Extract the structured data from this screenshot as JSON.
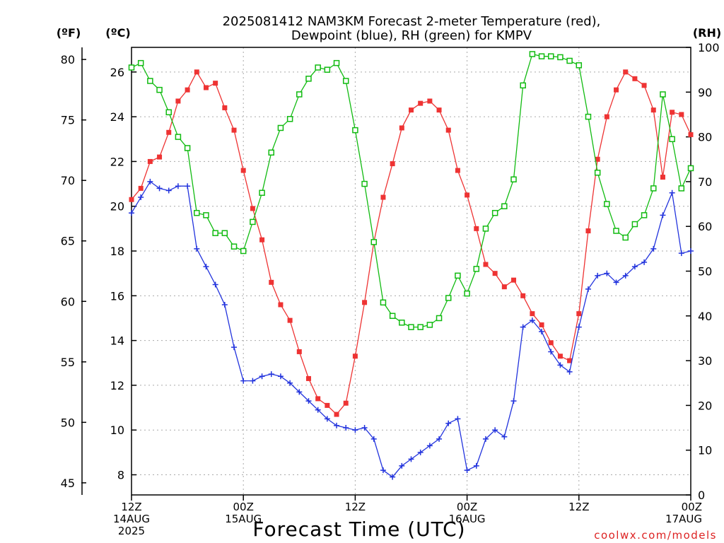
{
  "chart_data": {
    "type": "line",
    "title": "2025081412 NAM3KM Forecast 2-meter Temperature (red),\nDewpoint (blue), RH (green) for KMPV",
    "xlabel": "Forecast Time (UTC)",
    "left_axis_f": {
      "label": "(ºF)",
      "range": [
        44,
        81
      ],
      "ticks": [
        "45",
        "50",
        "55",
        "60",
        "65",
        "70",
        "75",
        "80"
      ]
    },
    "left_axis_c": {
      "label": "(ºC)",
      "range": [
        7.1,
        27.1
      ],
      "ticks": [
        "8",
        "10",
        "12",
        "14",
        "16",
        "18",
        "20",
        "22",
        "24",
        "26"
      ]
    },
    "right_axis_rh": {
      "label": "(RH)",
      "range": [
        0,
        100
      ],
      "ticks": [
        "0",
        "10",
        "20",
        "30",
        "40",
        "50",
        "60",
        "70",
        "80",
        "90",
        "100"
      ]
    },
    "x_range_hours": [
      0,
      60
    ],
    "x_ticks": [
      {
        "hour": 0,
        "lines": [
          "12Z",
          "14AUG",
          "2025"
        ]
      },
      {
        "hour": 12,
        "lines": [
          "00Z",
          "15AUG"
        ]
      },
      {
        "hour": 24,
        "lines": [
          "12Z"
        ]
      },
      {
        "hour": 36,
        "lines": [
          "00Z",
          "16AUG"
        ]
      },
      {
        "hour": 48,
        "lines": [
          "12Z"
        ]
      },
      {
        "hour": 60,
        "lines": [
          "00Z",
          "17AUG"
        ]
      }
    ],
    "grid": true,
    "colors": {
      "temperature": "#ee3333",
      "dewpoint": "#2233dd",
      "rh": "#11bb11"
    },
    "series": [
      {
        "key": "temperature",
        "axis": "c",
        "x": [
          0,
          1,
          2,
          3,
          4,
          5,
          6,
          7,
          8,
          9,
          10,
          11,
          12,
          13,
          14,
          15,
          16,
          17,
          18,
          19,
          20,
          21,
          22,
          23,
          24,
          25,
          26,
          27,
          28,
          29,
          30,
          31,
          32,
          33,
          34,
          35,
          36,
          37,
          38,
          39,
          40,
          41,
          42,
          43,
          44,
          45,
          46,
          47,
          48,
          49,
          50,
          51,
          52,
          53,
          54,
          55,
          56,
          57,
          58,
          59,
          60
        ],
        "values": [
          20.3,
          20.8,
          22.0,
          22.2,
          23.3,
          24.7,
          25.2,
          26.0,
          25.3,
          25.5,
          24.4,
          23.4,
          21.6,
          19.9,
          18.5,
          16.6,
          15.6,
          14.9,
          13.5,
          12.3,
          11.4,
          11.1,
          10.7,
          11.2,
          13.3,
          15.7,
          18.4,
          20.4,
          21.9,
          23.5,
          24.3,
          24.6,
          24.7,
          24.3,
          23.4,
          21.6,
          20.5,
          19.0,
          17.4,
          17.0,
          16.4,
          16.7,
          16.0,
          15.2,
          14.7,
          13.9,
          13.3,
          13.1,
          15.2,
          18.9,
          22.1,
          24.0,
          25.2,
          26.0,
          25.7,
          25.4,
          24.3,
          21.3,
          24.2,
          24.1,
          23.2
        ]
      },
      {
        "key": "dewpoint",
        "axis": "c",
        "x": [
          0,
          1,
          2,
          3,
          4,
          5,
          6,
          7,
          8,
          9,
          10,
          11,
          12,
          13,
          14,
          15,
          16,
          17,
          18,
          19,
          20,
          21,
          22,
          23,
          24,
          25,
          26,
          27,
          28,
          29,
          30,
          31,
          32,
          33,
          34,
          35,
          36,
          37,
          38,
          39,
          40,
          41,
          42,
          43,
          44,
          45,
          46,
          47,
          48,
          49,
          50,
          51,
          52,
          53,
          54,
          55,
          56,
          57,
          58,
          59,
          60
        ],
        "values": [
          19.7,
          20.4,
          21.1,
          20.8,
          20.7,
          20.9,
          20.9,
          18.1,
          17.3,
          16.5,
          15.6,
          13.7,
          12.2,
          12.2,
          12.4,
          12.5,
          12.4,
          12.1,
          11.7,
          11.3,
          10.9,
          10.5,
          10.2,
          10.1,
          10.0,
          10.1,
          9.6,
          8.2,
          7.9,
          8.4,
          8.7,
          9.0,
          9.3,
          9.6,
          10.3,
          10.5,
          8.2,
          8.4,
          9.6,
          10.0,
          9.7,
          11.3,
          14.6,
          14.9,
          14.4,
          13.5,
          12.9,
          12.6,
          14.6,
          16.3,
          16.9,
          17.0,
          16.6,
          16.9,
          17.3,
          17.5,
          18.1,
          19.6,
          20.6,
          17.9,
          18.0
        ]
      },
      {
        "key": "rh",
        "axis": "rh",
        "x": [
          0,
          1,
          2,
          3,
          4,
          5,
          6,
          7,
          8,
          9,
          10,
          11,
          12,
          13,
          14,
          15,
          16,
          17,
          18,
          19,
          20,
          21,
          22,
          23,
          24,
          25,
          26,
          27,
          28,
          29,
          30,
          31,
          32,
          33,
          34,
          35,
          36,
          37,
          38,
          39,
          40,
          41,
          42,
          43,
          44,
          45,
          46,
          47,
          48,
          49,
          50,
          51,
          52,
          53,
          54,
          55,
          56,
          57,
          58,
          59,
          60
        ],
        "values": [
          95.5,
          96.5,
          92.5,
          90.5,
          85.5,
          80.0,
          77.5,
          63.0,
          62.5,
          58.5,
          58.5,
          55.5,
          54.5,
          61.0,
          67.5,
          76.5,
          82.0,
          84.0,
          89.5,
          93.0,
          95.5,
          95.0,
          96.5,
          92.5,
          81.5,
          69.5,
          56.5,
          43.0,
          40.0,
          38.5,
          37.5,
          37.5,
          38.0,
          39.5,
          44.0,
          49.0,
          45.0,
          50.5,
          59.5,
          63.0,
          64.5,
          70.5,
          91.5,
          98.5,
          98.0,
          98.0,
          97.8,
          97.0,
          96.0,
          84.5,
          72.0,
          65.0,
          59.0,
          57.5,
          60.5,
          62.5,
          68.5,
          89.5,
          79.5,
          68.5,
          73.0
        ]
      }
    ],
    "credit": "coolwx.com/models"
  }
}
